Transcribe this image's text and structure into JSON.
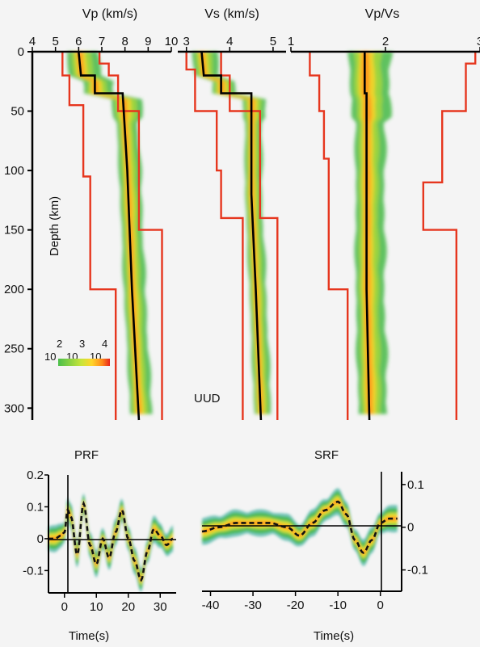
{
  "chart_data": [
    {
      "type": "line",
      "title": "Vp (km/s)",
      "ylabel": "Depth (km)",
      "xlim": [
        4,
        10
      ],
      "ylim": [
        0,
        310
      ],
      "xticks": [
        "4",
        "5",
        "6",
        "7",
        "8",
        "9",
        "10"
      ],
      "yticks": [
        "0",
        "50",
        "100",
        "150",
        "200",
        "250",
        "300"
      ],
      "colorbar": {
        "exponents": [
          "2",
          "3",
          "4"
        ],
        "base": "10"
      },
      "bounds_lower": [
        [
          5.3,
          0
        ],
        [
          5.3,
          20
        ],
        [
          5.6,
          20
        ],
        [
          5.6,
          45
        ],
        [
          6.2,
          45
        ],
        [
          6.2,
          105
        ],
        [
          6.5,
          105
        ],
        [
          6.5,
          200
        ],
        [
          7.6,
          200
        ],
        [
          7.6,
          310
        ]
      ],
      "bounds_upper": [
        [
          6.9,
          0
        ],
        [
          6.9,
          10
        ],
        [
          7.3,
          10
        ],
        [
          7.3,
          20
        ],
        [
          7.7,
          20
        ],
        [
          7.7,
          50
        ],
        [
          8.6,
          50
        ],
        [
          8.6,
          150
        ],
        [
          9.6,
          150
        ],
        [
          9.6,
          310
        ]
      ],
      "mean_model": [
        [
          6.0,
          0
        ],
        [
          6.1,
          20
        ],
        [
          6.7,
          20
        ],
        [
          6.7,
          35
        ],
        [
          7.9,
          35
        ],
        [
          8.1,
          100
        ],
        [
          8.3,
          200
        ],
        [
          8.6,
          310
        ]
      ]
    },
    {
      "type": "line",
      "title": "Vs (km/s)",
      "xlim": [
        2.8,
        5.3
      ],
      "ylim": [
        0,
        310
      ],
      "xticks": [
        "3",
        "4",
        "5"
      ],
      "annotation": "UUD",
      "bounds_lower": [
        [
          3.0,
          0
        ],
        [
          3.0,
          15
        ],
        [
          3.2,
          15
        ],
        [
          3.2,
          50
        ],
        [
          3.7,
          50
        ],
        [
          3.7,
          100
        ],
        [
          3.8,
          100
        ],
        [
          3.8,
          140
        ],
        [
          4.3,
          140
        ],
        [
          4.3,
          310
        ]
      ],
      "bounds_upper": [
        [
          3.8,
          0
        ],
        [
          3.8,
          20
        ],
        [
          4.0,
          20
        ],
        [
          4.0,
          50
        ],
        [
          4.7,
          50
        ],
        [
          4.7,
          140
        ],
        [
          5.1,
          140
        ],
        [
          5.1,
          310
        ]
      ],
      "mean_model": [
        [
          3.35,
          0
        ],
        [
          3.4,
          20
        ],
        [
          3.8,
          20
        ],
        [
          3.8,
          35
        ],
        [
          4.5,
          35
        ],
        [
          4.5,
          120
        ],
        [
          4.6,
          200
        ],
        [
          4.72,
          310
        ]
      ]
    },
    {
      "type": "line",
      "title": "Vp/Vs",
      "xlim": [
        1,
        3
      ],
      "ylim": [
        0,
        310
      ],
      "xticks": [
        "1",
        "2",
        "3"
      ],
      "bounds_lower": [
        [
          1.2,
          0
        ],
        [
          1.2,
          20
        ],
        [
          1.3,
          20
        ],
        [
          1.3,
          50
        ],
        [
          1.35,
          50
        ],
        [
          1.35,
          90
        ],
        [
          1.4,
          90
        ],
        [
          1.4,
          200
        ],
        [
          1.6,
          200
        ],
        [
          1.6,
          310
        ]
      ],
      "bounds_upper": [
        [
          2.95,
          0
        ],
        [
          2.95,
          10
        ],
        [
          2.85,
          10
        ],
        [
          2.85,
          50
        ],
        [
          2.6,
          50
        ],
        [
          2.6,
          110
        ],
        [
          2.4,
          110
        ],
        [
          2.4,
          150
        ],
        [
          2.75,
          150
        ],
        [
          2.75,
          310
        ]
      ],
      "mean_model": [
        [
          1.78,
          0
        ],
        [
          1.78,
          35
        ],
        [
          1.8,
          35
        ],
        [
          1.8,
          100
        ],
        [
          1.8,
          200
        ],
        [
          1.83,
          310
        ]
      ]
    },
    {
      "type": "line",
      "title": "PRF",
      "xlabel": "Time(s)",
      "xlim": [
        -5,
        35
      ],
      "ylim": [
        -0.17,
        0.2
      ],
      "xticks": [
        "0",
        "10",
        "20",
        "30"
      ],
      "yticks": [
        "0.2",
        "0.1",
        "0",
        "-0.1"
      ],
      "series": [
        {
          "x": [
            -5,
            -3,
            -1,
            0,
            1,
            2,
            4,
            6,
            8,
            10,
            12,
            14,
            16,
            18,
            20,
            22,
            24,
            26,
            28,
            30,
            32,
            34
          ],
          "y": [
            0.0,
            0.0,
            0.01,
            0.02,
            0.09,
            0.07,
            -0.05,
            0.11,
            -0.02,
            -0.08,
            0.0,
            -0.06,
            0.02,
            0.09,
            0.0,
            -0.07,
            -0.13,
            -0.04,
            0.03,
            0.01,
            -0.02,
            0.0
          ]
        }
      ]
    },
    {
      "type": "line",
      "title": "SRF",
      "xlabel": "Time(s)",
      "xlim": [
        -42,
        5
      ],
      "ylim": [
        -0.15,
        0.13
      ],
      "xticks": [
        "-40",
        "-30",
        "-20",
        "-10",
        "0"
      ],
      "yticks": [
        "0.1",
        "0",
        "-0.1"
      ],
      "series": [
        {
          "x": [
            -42,
            -38,
            -34,
            -30,
            -26,
            -22,
            -19,
            -16,
            -13,
            -10,
            -8,
            -6,
            -4,
            -2,
            0,
            2,
            4
          ],
          "y": [
            -0.01,
            0.0,
            0.01,
            0.01,
            0.01,
            0.0,
            -0.02,
            0.01,
            0.04,
            0.06,
            0.03,
            -0.03,
            -0.06,
            -0.03,
            0.01,
            0.02,
            0.02
          ]
        }
      ]
    }
  ]
}
